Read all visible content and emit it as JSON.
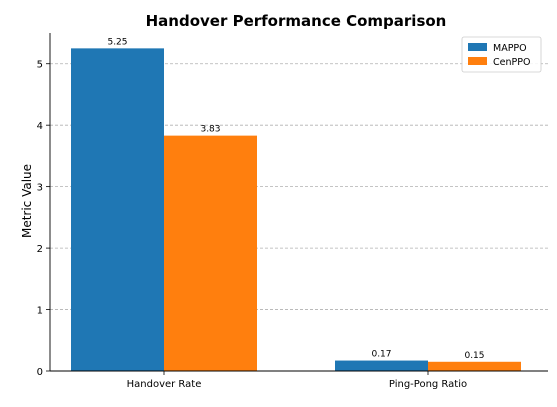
{
  "chart_data": {
    "type": "bar",
    "title": "Handover Performance Comparison",
    "xlabel": "",
    "ylabel": "Metric Value",
    "categories": [
      "Handover Rate",
      "Ping-Pong Ratio"
    ],
    "series": [
      {
        "name": "MAPPO",
        "values": [
          5.25,
          0.17
        ],
        "labels": [
          "5.25",
          "0.17"
        ],
        "color": "#1f77b4"
      },
      {
        "name": "CenPPO",
        "values": [
          3.83,
          0.15
        ],
        "labels": [
          "3.83",
          "0.15"
        ],
        "color": "#ff7f0e"
      }
    ],
    "ylim": [
      0,
      5.5
    ],
    "yticks": [
      0,
      1,
      2,
      3,
      4,
      5
    ],
    "grid": "horizontal-dashed",
    "legend": "top-right"
  }
}
